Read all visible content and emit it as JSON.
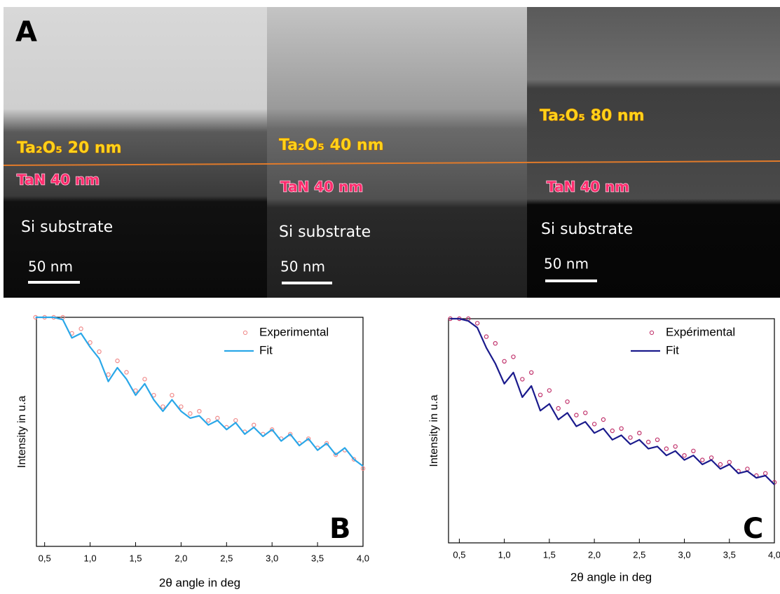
{
  "panel_a": {
    "label": "A",
    "images": [
      {
        "oxide": "Ta₂O₅ 20 nm",
        "nitride": "TaN 40 nm",
        "substrate": "Si substrate",
        "scale_bar": "50 nm"
      },
      {
        "oxide": "Ta₂O₅ 40 nm",
        "nitride": "TaN 40 nm",
        "substrate": "Si substrate",
        "scale_bar": "50 nm"
      },
      {
        "oxide": "Ta₂O₅ 80 nm",
        "nitride": "TaN 40 nm",
        "substrate": "Si substrate",
        "scale_bar": "50 nm"
      }
    ]
  },
  "chart_data": [
    {
      "type": "line",
      "panel_label": "B",
      "xlabel": "2θ angle in deg",
      "ylabel": "Intensity in u.a",
      "x": [
        0.4,
        0.5,
        0.6,
        0.7,
        0.8,
        0.9,
        1.0,
        1.1,
        1.2,
        1.3,
        1.4,
        1.5,
        1.6,
        1.7,
        1.8,
        1.9,
        2.0,
        2.1,
        2.2,
        2.3,
        2.4,
        2.5,
        2.6,
        2.7,
        2.8,
        2.9,
        3.0,
        3.1,
        3.2,
        3.3,
        3.4,
        3.5,
        3.6,
        3.7,
        3.8,
        3.9,
        4.0
      ],
      "series": [
        {
          "name": "Experimental",
          "color": "#f08a8a",
          "marker": "circle",
          "values": [
            10,
            10,
            10,
            10,
            9.3,
            9.5,
            8.9,
            8.5,
            7.5,
            8.1,
            7.6,
            6.8,
            7.3,
            6.6,
            6.1,
            6.6,
            6.1,
            5.8,
            5.9,
            5.5,
            5.6,
            5.2,
            5.5,
            5.0,
            5.3,
            4.9,
            5.1,
            4.7,
            4.9,
            4.5,
            4.7,
            4.3,
            4.5,
            4.0,
            4.2,
            3.8,
            3.4
          ]
        },
        {
          "name": "Fit",
          "color": "#2aa7e8",
          "marker": "line",
          "values": [
            10,
            10,
            10,
            9.9,
            9.1,
            9.3,
            8.7,
            8.2,
            7.2,
            7.8,
            7.3,
            6.6,
            7.1,
            6.4,
            5.9,
            6.4,
            5.9,
            5.6,
            5.7,
            5.3,
            5.5,
            5.1,
            5.4,
            4.9,
            5.2,
            4.8,
            5.1,
            4.6,
            4.9,
            4.4,
            4.7,
            4.2,
            4.5,
            4.0,
            4.3,
            3.8,
            3.5
          ]
        }
      ],
      "xlim": [
        0.41,
        4.0
      ],
      "ylim": [
        0,
        10
      ],
      "xticks": [
        {
          "value": 0.5,
          "label": "0,5"
        },
        {
          "value": 1.0,
          "label": "1,0"
        },
        {
          "value": 1.5,
          "label": "1,5"
        },
        {
          "value": 2.0,
          "label": "2,0"
        },
        {
          "value": 2.5,
          "label": "2,5"
        },
        {
          "value": 3.0,
          "label": "3,0"
        },
        {
          "value": 3.5,
          "label": "3,5"
        },
        {
          "value": 4.0,
          "label": "4,0"
        }
      ]
    },
    {
      "type": "line",
      "panel_label": "C",
      "xlabel": "2θ angle in deg",
      "ylabel": "Intensity in u.a",
      "x": [
        0.4,
        0.5,
        0.6,
        0.7,
        0.8,
        0.9,
        1.0,
        1.1,
        1.2,
        1.3,
        1.4,
        1.5,
        1.6,
        1.7,
        1.8,
        1.9,
        2.0,
        2.1,
        2.2,
        2.3,
        2.4,
        2.5,
        2.6,
        2.7,
        2.8,
        2.9,
        3.0,
        3.1,
        3.2,
        3.3,
        3.4,
        3.5,
        3.6,
        3.7,
        3.8,
        3.9,
        4.0
      ],
      "series": [
        {
          "name": "Expérimental",
          "color": "#c0306a",
          "marker": "circle",
          "values": [
            10,
            10,
            10,
            9.8,
            9.2,
            8.9,
            8.1,
            8.3,
            7.3,
            7.6,
            6.6,
            6.8,
            6.0,
            6.3,
            5.7,
            5.8,
            5.3,
            5.5,
            5.0,
            5.1,
            4.7,
            4.9,
            4.5,
            4.6,
            4.2,
            4.3,
            3.9,
            4.1,
            3.7,
            3.8,
            3.5,
            3.6,
            3.2,
            3.3,
            3.0,
            3.1,
            2.7
          ]
        },
        {
          "name": "Fit",
          "color": "#1a1a8c",
          "marker": "line",
          "values": [
            10,
            10,
            9.9,
            9.6,
            8.7,
            8.0,
            7.1,
            7.6,
            6.5,
            7.0,
            5.9,
            6.2,
            5.5,
            5.8,
            5.2,
            5.4,
            4.9,
            5.1,
            4.6,
            4.8,
            4.4,
            4.6,
            4.2,
            4.3,
            3.9,
            4.1,
            3.7,
            3.9,
            3.5,
            3.7,
            3.3,
            3.5,
            3.1,
            3.2,
            2.9,
            3.0,
            2.6
          ]
        }
      ],
      "xlim": [
        0.38,
        4.0
      ],
      "ylim": [
        0,
        10
      ],
      "xticks": [
        {
          "value": 0.5,
          "label": "0,5"
        },
        {
          "value": 1.0,
          "label": "1,0"
        },
        {
          "value": 1.5,
          "label": "1,5"
        },
        {
          "value": 2.0,
          "label": "2,0"
        },
        {
          "value": 2.5,
          "label": "2,5"
        },
        {
          "value": 3.0,
          "label": "3,0"
        },
        {
          "value": 3.5,
          "label": "3,5"
        },
        {
          "value": 4.0,
          "label": "4,0"
        }
      ]
    }
  ]
}
